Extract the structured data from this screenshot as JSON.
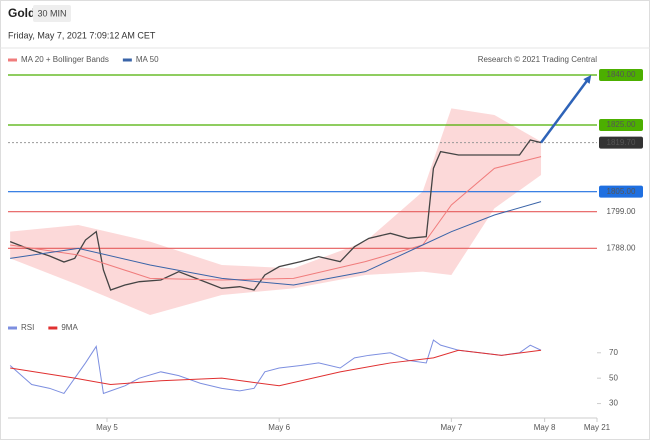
{
  "header": {
    "instrument": "Gold",
    "timeframe": "30 MIN",
    "date": "Friday, May 7, 2021 7:09:12 AM CET",
    "credit": "Research © 2021 Trading Central"
  },
  "chart_data": [
    {
      "type": "line",
      "ylim": [
        1769.5,
        1843
      ],
      "xlim": [
        10.2,
        92.3
      ],
      "series": [
        {
          "color": "#444444",
          "x": [
            10.5,
            13.5,
            16,
            18,
            19.5,
            21,
            22.5,
            23.5,
            24.5,
            26.5,
            28.5,
            31.5,
            34,
            37,
            40,
            42.5,
            44.5,
            46,
            48,
            51,
            53.5,
            56.5,
            58.5,
            60.5,
            63.5,
            66,
            68.5,
            69.5,
            70.5,
            73,
            76,
            79,
            81.5,
            83,
            84.5
          ],
          "values": [
            1790,
            1787.5,
            1785.7,
            1783.9,
            1785,
            1790.5,
            1793,
            1781.5,
            1775.5,
            1777,
            1778,
            1778.5,
            1781,
            1778.5,
            1776,
            1776.5,
            1775.5,
            1780,
            1782.5,
            1784,
            1785.5,
            1784,
            1788.5,
            1791,
            1792.5,
            1791,
            1791.5,
            1812,
            1817,
            1816,
            1816,
            1816,
            1816,
            1820.5,
            1819.7
          ]
        },
        {
          "name": "MA 20 + Bollinger Bands",
          "color": "#f07c7c",
          "x": [
            10.5,
            20,
            30,
            40,
            50,
            60,
            68,
            72,
            78,
            84.5
          ],
          "values": [
            1789,
            1786,
            1779,
            1778.5,
            1779,
            1784,
            1789,
            1801,
            1812,
            1815.5
          ]
        },
        {
          "name": "MA 50",
          "color": "#3a64a8",
          "x": [
            10.5,
            20,
            30,
            40,
            50,
            60,
            68,
            72,
            78,
            84.5
          ],
          "values": [
            1785,
            1788,
            1783,
            1779,
            1777,
            1781,
            1789,
            1793,
            1798,
            1802
          ]
        }
      ],
      "bands": {
        "color": "#fbd0d0",
        "x": [
          10.5,
          20,
          30,
          40,
          50,
          60,
          68,
          72,
          78,
          84.5
        ],
        "upper": [
          1793,
          1795,
          1790,
          1783,
          1782,
          1790,
          1805,
          1830,
          1828,
          1820
        ],
        "lower": [
          1785,
          1777,
          1768,
          1774,
          1776,
          1780,
          1781,
          1780,
          1800,
          1810
        ]
      },
      "levels": [
        {
          "value": 1840,
          "label": "1840.00",
          "color": "#4caf00",
          "boxed": true
        },
        {
          "value": 1825,
          "label": "1825.00",
          "color": "#4caf00",
          "boxed": true
        },
        {
          "value": 1819.7,
          "label": "1819.70",
          "color": "#333333",
          "boxed": true,
          "dotted": true
        },
        {
          "value": 1805,
          "label": "1805.00",
          "color": "#1f6fe0",
          "boxed": true
        },
        {
          "value": 1799,
          "label": "1799.00",
          "color": "#e65c5c",
          "boxed": false
        },
        {
          "value": 1788,
          "label": "1788.00",
          "color": "#e65c5c",
          "boxed": false
        }
      ],
      "arrow": {
        "color": "#2e63b8",
        "x": [
          84.5,
          91.5
        ],
        "y": [
          1819.7,
          1840
        ]
      }
    },
    {
      "type": "line",
      "ylim": [
        21,
        84
      ],
      "yticks": [
        30,
        50,
        70
      ],
      "xlim": [
        10.2,
        92.3
      ],
      "xticks": [
        {
          "value": 24,
          "label": "May 5"
        },
        {
          "value": 48,
          "label": "May 6"
        },
        {
          "value": 72,
          "label": "May 7"
        },
        {
          "value": 85,
          "label": "May 8"
        },
        {
          "value": 92.3,
          "label": "May 21"
        }
      ],
      "series": [
        {
          "name": "RSI",
          "color": "#7d8fe0",
          "x": [
            10.5,
            13.5,
            16,
            18,
            19.5,
            21,
            22.5,
            23.5,
            24.5,
            26.5,
            28.5,
            31.5,
            34,
            37,
            40,
            42.5,
            44.5,
            46,
            48,
            51,
            53.5,
            56.5,
            58.5,
            60.5,
            63.5,
            66,
            68.5,
            69.5,
            70.5,
            73,
            76,
            79,
            81.5,
            83,
            84.5
          ],
          "values": [
            60,
            45,
            42,
            38,
            50,
            62,
            75,
            38,
            40,
            44,
            50,
            55,
            52,
            46,
            42,
            40,
            42,
            55,
            58,
            60,
            62,
            58,
            66,
            68,
            70,
            64,
            62,
            80,
            76,
            72,
            70,
            68,
            70,
            76,
            72
          ]
        },
        {
          "name": "9MA",
          "color": "#e03030",
          "x": [
            10.5,
            19.5,
            24.5,
            31.5,
            40,
            48,
            56.5,
            63.5,
            69.5,
            73,
            79,
            84.5
          ],
          "values": [
            58,
            50,
            45,
            48,
            50,
            44,
            55,
            62,
            66,
            72,
            68,
            72
          ]
        }
      ]
    }
  ]
}
